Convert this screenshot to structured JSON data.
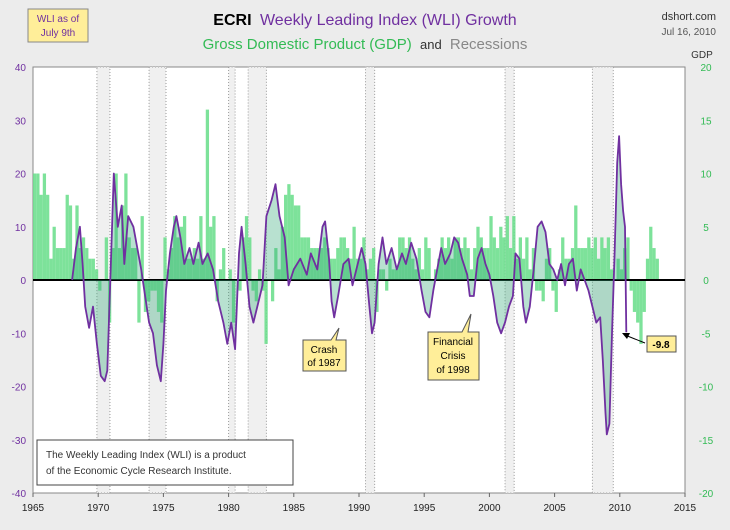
{
  "chart_data": {
    "type": "line",
    "title_parts": {
      "ecri": "ECRI",
      "wli": "Weekly Leading Index (WLI) Growth",
      "gdp": "Gross Domestic Product (GDP)",
      "and": "and",
      "recessions": "Recessions"
    },
    "source": "dshort.com",
    "date": "Jul 16, 2010",
    "wli_as_of": [
      "WLI as of",
      "July 9th"
    ],
    "right_axis_title": "GDP",
    "x_ticks": [
      "1965",
      "1970",
      "1975",
      "1980",
      "1985",
      "1990",
      "1995",
      "2000",
      "2005",
      "2010",
      "2015"
    ],
    "left_ticks": [
      "40",
      "30",
      "20",
      "10",
      "0",
      "-10",
      "-20",
      "-30",
      "-40"
    ],
    "right_ticks": [
      "20",
      "15",
      "10",
      "5",
      "0",
      "-5",
      "-10",
      "-15",
      "-20"
    ],
    "xlim": [
      1965,
      2015
    ],
    "ylim_left": [
      -40,
      40
    ],
    "ylim_right": [
      -20,
      20
    ],
    "colors": {
      "wli": "#7030a0",
      "gdp": "#66dd88",
      "gdp_text": "#33bb55",
      "left_axis": "#7030a0",
      "right_axis": "#33bb55",
      "recession": "#999999",
      "zero_line": "#000000"
    },
    "recessions": [
      [
        1969.9,
        1970.9
      ],
      [
        1973.9,
        1975.2
      ],
      [
        1980.0,
        1980.5
      ],
      [
        1981.5,
        1982.9
      ],
      [
        1990.5,
        1991.2
      ],
      [
        2001.2,
        2001.9
      ],
      [
        2007.9,
        2009.5
      ]
    ],
    "annotations": [
      {
        "lines": [
          "Crash",
          "of 1987"
        ]
      },
      {
        "lines": [
          "Financial",
          "Crisis",
          "of 1998"
        ]
      },
      {
        "lines": [
          "-9.8"
        ]
      }
    ],
    "note_lines": [
      "The Weekly Leading Index (WLI) is a product",
      "of the Economic Cycle Research Institute."
    ],
    "series": [
      {
        "name": "Weekly Leading Index (WLI) Growth",
        "axis": "left",
        "points": [
          [
            1968.0,
            0
          ],
          [
            1968.3,
            6
          ],
          [
            1968.6,
            10
          ],
          [
            1968.8,
            3
          ],
          [
            1969.0,
            -5
          ],
          [
            1969.3,
            -9
          ],
          [
            1969.6,
            -5
          ],
          [
            1969.9,
            -12
          ],
          [
            1970.2,
            -18
          ],
          [
            1970.5,
            -19
          ],
          [
            1970.7,
            -17
          ],
          [
            1971.0,
            5
          ],
          [
            1971.2,
            20
          ],
          [
            1971.5,
            10
          ],
          [
            1971.8,
            14
          ],
          [
            1972.0,
            3
          ],
          [
            1972.3,
            12
          ],
          [
            1972.7,
            10
          ],
          [
            1973.0,
            6
          ],
          [
            1973.3,
            2
          ],
          [
            1973.6,
            -3
          ],
          [
            1973.9,
            -8
          ],
          [
            1974.2,
            -10
          ],
          [
            1974.5,
            -16
          ],
          [
            1974.8,
            -19
          ],
          [
            1975.0,
            -12
          ],
          [
            1975.2,
            -2
          ],
          [
            1975.5,
            5
          ],
          [
            1975.8,
            10
          ],
          [
            1976.0,
            12
          ],
          [
            1976.3,
            8
          ],
          [
            1976.6,
            3
          ],
          [
            1977.0,
            6
          ],
          [
            1977.3,
            3
          ],
          [
            1977.7,
            7
          ],
          [
            1978.0,
            3
          ],
          [
            1978.4,
            5
          ],
          [
            1978.8,
            2
          ],
          [
            1979.2,
            -4
          ],
          [
            1979.6,
            -8
          ],
          [
            1979.9,
            -12
          ],
          [
            1980.2,
            -8
          ],
          [
            1980.5,
            -13
          ],
          [
            1980.8,
            5
          ],
          [
            1981.0,
            10
          ],
          [
            1981.3,
            3
          ],
          [
            1981.6,
            -5
          ],
          [
            1981.9,
            -8
          ],
          [
            1982.2,
            -5
          ],
          [
            1982.6,
            -1
          ],
          [
            1982.9,
            12
          ],
          [
            1983.3,
            15
          ],
          [
            1983.6,
            18
          ],
          [
            1983.9,
            12
          ],
          [
            1984.3,
            8
          ],
          [
            1984.6,
            -1
          ],
          [
            1985.0,
            2
          ],
          [
            1985.5,
            4
          ],
          [
            1986.0,
            1
          ],
          [
            1986.3,
            5
          ],
          [
            1986.8,
            2
          ],
          [
            1987.2,
            10
          ],
          [
            1987.4,
            11
          ],
          [
            1987.7,
            4
          ],
          [
            1987.9,
            -4
          ],
          [
            1988.1,
            -7
          ],
          [
            1988.4,
            -3
          ],
          [
            1988.8,
            3
          ],
          [
            1989.2,
            4
          ],
          [
            1989.5,
            -1
          ],
          [
            1989.8,
            2
          ],
          [
            1990.2,
            6
          ],
          [
            1990.5,
            3
          ],
          [
            1990.8,
            -5
          ],
          [
            1991.0,
            -10
          ],
          [
            1991.2,
            -8
          ],
          [
            1991.5,
            3
          ],
          [
            1991.8,
            8
          ],
          [
            1992.1,
            3
          ],
          [
            1992.5,
            6
          ],
          [
            1992.9,
            2
          ],
          [
            1993.3,
            5
          ],
          [
            1993.6,
            3
          ],
          [
            1994.0,
            7
          ],
          [
            1994.4,
            4
          ],
          [
            1994.8,
            -2
          ],
          [
            1995.1,
            -6
          ],
          [
            1995.4,
            -7
          ],
          [
            1995.7,
            -2
          ],
          [
            1996.0,
            2
          ],
          [
            1996.3,
            6
          ],
          [
            1996.6,
            3
          ],
          [
            1997.0,
            5
          ],
          [
            1997.3,
            8
          ],
          [
            1997.6,
            7
          ],
          [
            1997.9,
            4
          ],
          [
            1998.3,
            1
          ],
          [
            1998.5,
            -3
          ],
          [
            1998.8,
            -3
          ],
          [
            1999.1,
            4
          ],
          [
            1999.4,
            6
          ],
          [
            1999.7,
            3
          ],
          [
            2000.0,
            1
          ],
          [
            2000.3,
            -3
          ],
          [
            2000.6,
            -8
          ],
          [
            2000.9,
            -10
          ],
          [
            2001.2,
            -8
          ],
          [
            2001.5,
            -5
          ],
          [
            2001.8,
            -3
          ],
          [
            2002.0,
            5
          ],
          [
            2002.3,
            4
          ],
          [
            2002.6,
            -5
          ],
          [
            2002.8,
            -8
          ],
          [
            2003.1,
            -5
          ],
          [
            2003.4,
            2
          ],
          [
            2003.7,
            10
          ],
          [
            2004.0,
            11
          ],
          [
            2004.3,
            9
          ],
          [
            2004.6,
            3
          ],
          [
            2004.9,
            2
          ],
          [
            2005.2,
            0
          ],
          [
            2005.5,
            3
          ],
          [
            2005.8,
            -1
          ],
          [
            2006.1,
            3
          ],
          [
            2006.4,
            4
          ],
          [
            2006.7,
            -2
          ],
          [
            2007.0,
            2
          ],
          [
            2007.3,
            0
          ],
          [
            2007.6,
            -2
          ],
          [
            2007.9,
            -5
          ],
          [
            2008.2,
            -8
          ],
          [
            2008.5,
            -7
          ],
          [
            2008.7,
            -15
          ],
          [
            2008.9,
            -25
          ],
          [
            2009.0,
            -29
          ],
          [
            2009.2,
            -27
          ],
          [
            2009.4,
            -10
          ],
          [
            2009.6,
            5
          ],
          [
            2009.8,
            22
          ],
          [
            2009.95,
            27
          ],
          [
            2010.1,
            18
          ],
          [
            2010.25,
            13
          ],
          [
            2010.4,
            10
          ],
          [
            2010.5,
            -9.8
          ]
        ]
      },
      {
        "name": "Gross Domestic Product (GDP)",
        "axis": "right",
        "quarterly_start": 1965.0,
        "quarterly_values": [
          10,
          10,
          8,
          10,
          8,
          2,
          5,
          3,
          3,
          3,
          8,
          7,
          2,
          7,
          3,
          4,
          3,
          2,
          2,
          1,
          -1,
          0,
          4,
          -4,
          3,
          10,
          3,
          7,
          10,
          4,
          3,
          3,
          -4,
          6,
          -3,
          -2,
          -1,
          -1,
          -3,
          -4,
          4,
          1,
          3,
          6,
          4,
          5,
          6,
          2,
          2,
          3,
          2,
          6,
          2,
          16,
          5,
          6,
          -2,
          1,
          3,
          0,
          1,
          -4,
          0,
          -1,
          4,
          6,
          4,
          -1,
          -2,
          1,
          -1,
          -6,
          0,
          -2,
          3,
          1,
          5,
          8,
          9,
          8,
          7,
          7,
          4,
          4,
          4,
          3,
          3,
          3,
          3,
          4,
          3,
          2,
          2,
          3,
          4,
          4,
          3,
          2,
          5,
          2,
          2,
          4,
          1,
          2,
          3,
          -3,
          1,
          1,
          -1,
          2,
          1,
          1,
          4,
          4,
          3,
          4,
          2,
          1,
          3,
          1,
          4,
          3,
          0,
          1,
          2,
          4,
          3,
          4,
          2,
          4,
          4,
          3,
          4,
          3,
          1,
          3,
          5,
          4,
          3,
          3,
          6,
          4,
          3,
          5,
          4,
          6,
          3,
          6,
          2,
          4,
          2,
          4,
          1,
          3,
          -1,
          -1,
          -2,
          2,
          3,
          -1,
          -3,
          1,
          4,
          2,
          2,
          3,
          7,
          3,
          3,
          3,
          4,
          3,
          4,
          2,
          4,
          3,
          4,
          1,
          0,
          2,
          1,
          3,
          4,
          -1,
          -3,
          -4,
          -6,
          -3,
          2,
          5,
          3,
          2
        ]
      }
    ]
  }
}
